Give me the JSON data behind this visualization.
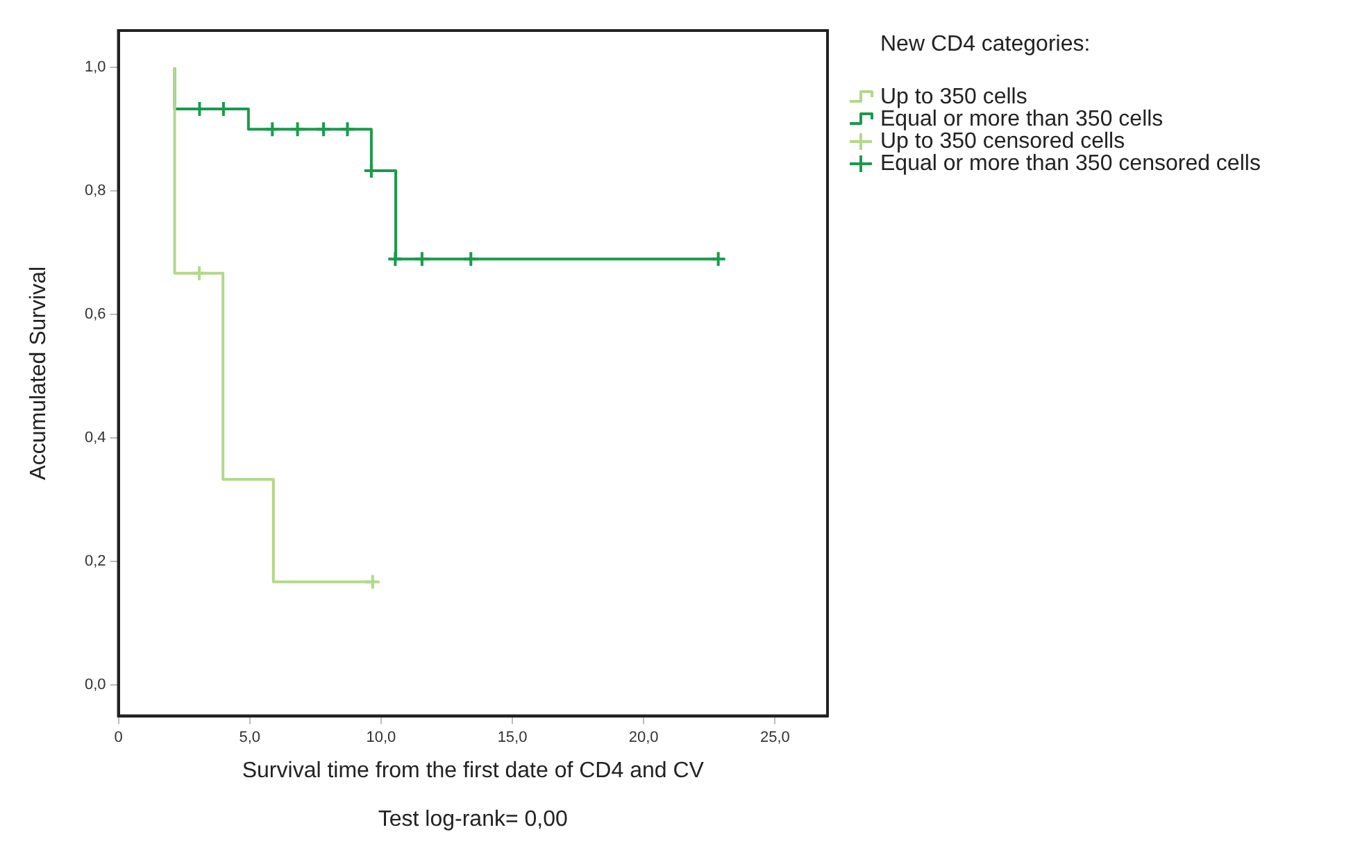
{
  "chart_data": {
    "type": "step",
    "xlabel": "Survival time from the first date of CD4 and CV",
    "ylabel": "Accumulated Survival",
    "legend_title": "New CD4 categories:",
    "annotations": [
      "Test log-rank= 0,00"
    ],
    "xlim": [
      0,
      27
    ],
    "xticks": [
      0,
      {
        "value": 5,
        "label": "5,0"
      },
      {
        "value": 10,
        "label": "10,0"
      },
      {
        "value": 15,
        "label": "15,0"
      },
      {
        "value": 20,
        "label": "20,0"
      },
      {
        "value": 25,
        "label": "25,0"
      }
    ],
    "ylim": [
      -0.05,
      1.06
    ],
    "yticks": [
      {
        "value": 0,
        "label": "0,0"
      },
      {
        "value": 0.2,
        "label": "0,2"
      },
      {
        "value": 0.4,
        "label": "0,4"
      },
      {
        "value": 0.6,
        "label": "0,6"
      },
      {
        "value": 0.8,
        "label": "0,8"
      },
      {
        "value": 1,
        "label": "1,0"
      }
    ],
    "grid": false,
    "legend": "right",
    "series": [
      {
        "name": "Up to 350 cells",
        "type": "step",
        "color": "#b3d88a",
        "x": [
          2.14,
          2.14,
          3.98,
          5.9,
          9.68
        ],
        "values": [
          1,
          0.667,
          0.333,
          0.167,
          0.167
        ]
      },
      {
        "name": "Equal or more than 350 cells",
        "type": "step",
        "color": "#1a9a4c",
        "x": [
          2.14,
          2.14,
          4.95,
          9.63,
          10.56,
          22.84
        ],
        "values": [
          1,
          0.933,
          0.9,
          0.833,
          0.69,
          0.69
        ]
      },
      {
        "name": "Up to 350 censored cells",
        "type": "scatter",
        "marker": "cross",
        "color": "#b3d88a",
        "x": [
          3.08,
          9.68
        ],
        "values": [
          0.667,
          0.167
        ]
      },
      {
        "name": "Equal or more than 350 censored cells",
        "type": "scatter",
        "marker": "cross",
        "color": "#1a9a4c",
        "x": [
          3.09,
          4.0,
          5.86,
          6.82,
          7.81,
          8.72,
          9.63,
          10.54,
          11.56,
          13.42,
          22.84
        ],
        "values": [
          0.933,
          0.933,
          0.9,
          0.9,
          0.9,
          0.9,
          0.833,
          0.69,
          0.69,
          0.69,
          0.69
        ]
      }
    ]
  }
}
